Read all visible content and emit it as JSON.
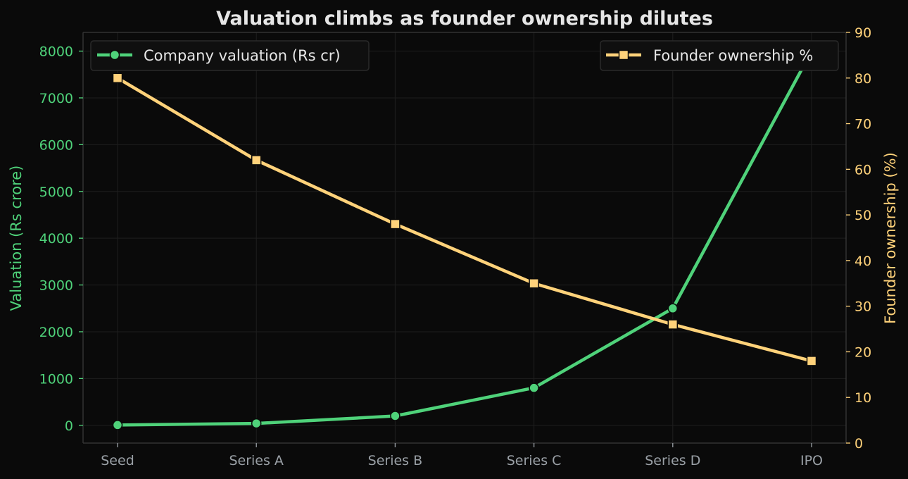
{
  "chart_data": {
    "type": "line",
    "title": "Valuation climbs as founder ownership dilutes",
    "categories": [
      "Seed",
      "Series A",
      "Series B",
      "Series C",
      "Series D",
      "IPO"
    ],
    "series": [
      {
        "name": "Company valuation (Rs cr)",
        "axis": "left",
        "color": "#4fd27a",
        "marker": "circle",
        "values": [
          5,
          40,
          200,
          800,
          2500,
          8000
        ]
      },
      {
        "name": "Founder ownership %",
        "axis": "right",
        "color": "#ffd27a",
        "marker": "square",
        "values": [
          80,
          62,
          48,
          35,
          26,
          18
        ]
      }
    ],
    "ylabel_left": "Valuation (Rs crore)",
    "ylabel_right": "Founder ownership (%)",
    "ylim_left": [
      -380,
      8400
    ],
    "yticks_left": [
      0,
      1000,
      2000,
      3000,
      4000,
      5000,
      6000,
      7000,
      8000
    ],
    "ylim_right": [
      0,
      90
    ],
    "yticks_right": [
      0,
      10,
      20,
      30,
      40,
      50,
      60,
      70,
      80,
      90
    ],
    "grid": true,
    "legend_left_placement": "top-left",
    "legend_right_placement": "top-right",
    "colors": {
      "background": "#0a0a0a",
      "text": "#e6e6e6",
      "muted": "#9aa0a6",
      "left_axis": "#4fd27a",
      "right_axis": "#ffd27a",
      "grid": "#1e1e1e",
      "spine": "#333333"
    }
  }
}
